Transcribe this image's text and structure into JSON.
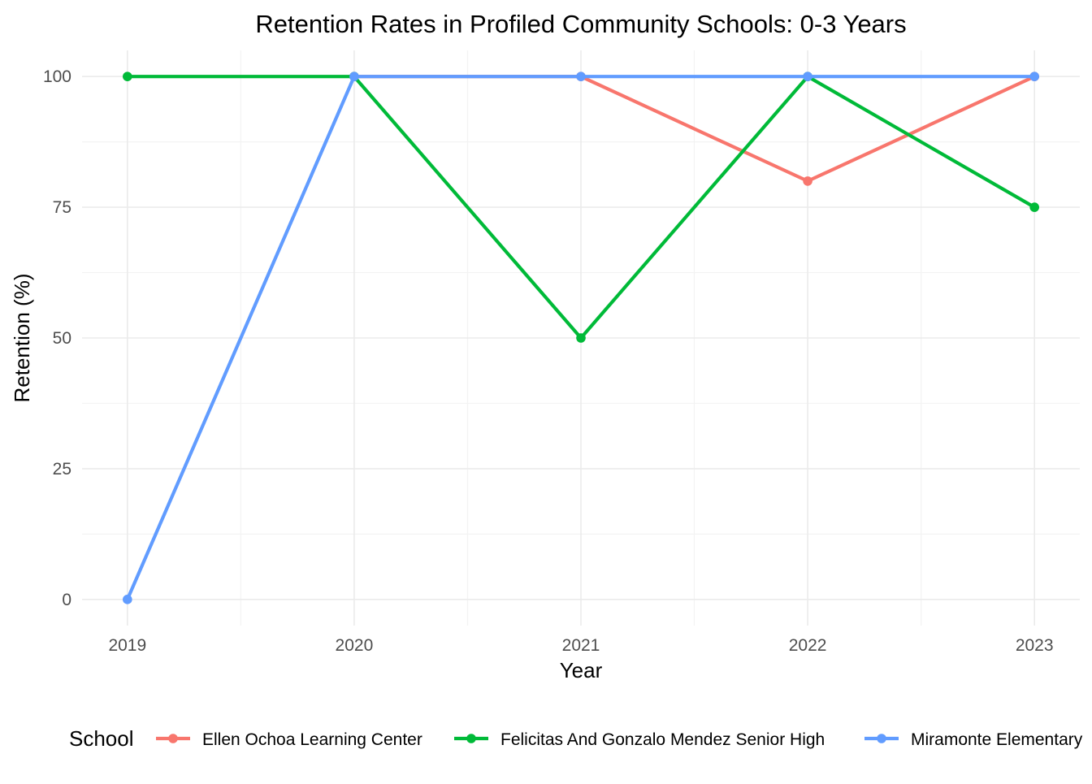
{
  "chart_data": {
    "type": "line",
    "title": "Retention Rates in Profiled Community Schools: 0-3 Years",
    "xlabel": "Year",
    "ylabel": "Retention (%)",
    "x": [
      2019,
      2020,
      2021,
      2022,
      2023
    ],
    "x_tick_labels": [
      "2019",
      "2020",
      "2021",
      "2022",
      "2023"
    ],
    "y_ticks": [
      0,
      25,
      50,
      75,
      100
    ],
    "y_tick_labels": [
      "0",
      "25",
      "50",
      "75",
      "100"
    ],
    "xlim": [
      2018.8,
      2023.2
    ],
    "ylim": [
      -5,
      105
    ],
    "grid": true,
    "legend": {
      "title": "School",
      "position": "bottom"
    },
    "series": [
      {
        "name": "Ellen Ochoa Learning Center",
        "color": "#F8766D",
        "points": [
          {
            "x": 2020,
            "y": 100
          },
          {
            "x": 2021,
            "y": 100
          },
          {
            "x": 2022,
            "y": 80
          },
          {
            "x": 2023,
            "y": 100
          }
        ]
      },
      {
        "name": "Felicitas And Gonzalo Mendez Senior High",
        "color": "#00BA38",
        "points": [
          {
            "x": 2019,
            "y": 100
          },
          {
            "x": 2020,
            "y": 100
          },
          {
            "x": 2021,
            "y": 50
          },
          {
            "x": 2022,
            "y": 100
          },
          {
            "x": 2023,
            "y": 75
          }
        ]
      },
      {
        "name": "Miramonte Elementary",
        "color": "#619CFF",
        "points": [
          {
            "x": 2019,
            "y": 0
          },
          {
            "x": 2020,
            "y": 100
          },
          {
            "x": 2021,
            "y": 100
          },
          {
            "x": 2022,
            "y": 100
          },
          {
            "x": 2023,
            "y": 100
          }
        ]
      }
    ]
  }
}
